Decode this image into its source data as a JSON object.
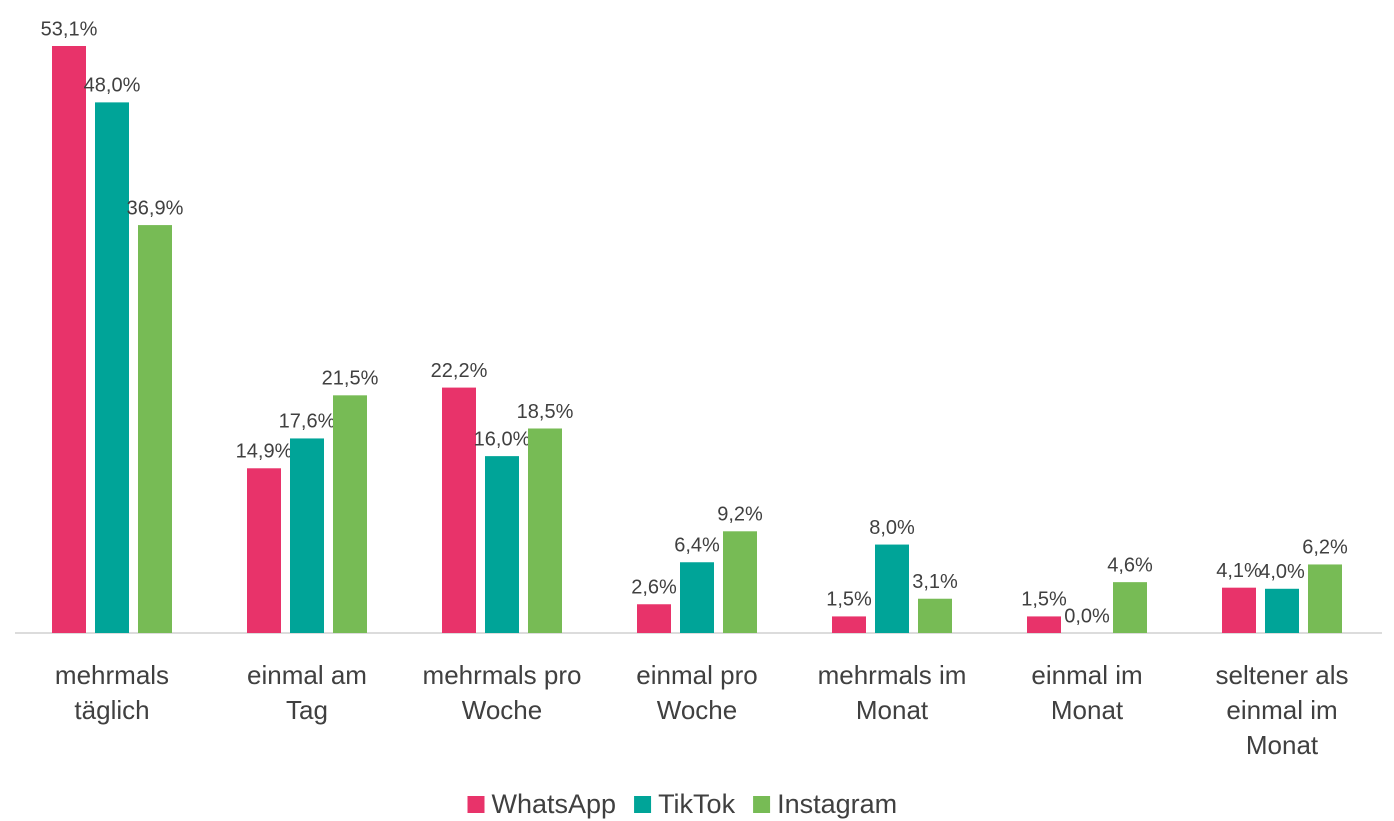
{
  "chart_data": {
    "type": "bar",
    "categories": [
      "mehrmals\ntäglich",
      "einmal am\nTag",
      "mehrmals pro\nWoche",
      "einmal pro\nWoche",
      "mehrmals im\nMonat",
      "einmal im\nMonat",
      "seltener als\neinmal im\nMonat"
    ],
    "series": [
      {
        "name": "WhatsApp",
        "color": "#e8336a",
        "values": [
          53.1,
          14.9,
          22.2,
          2.6,
          1.5,
          1.5,
          4.1
        ],
        "value_labels": [
          "53,1%",
          "14,9%",
          "22,2%",
          "2,6%",
          "1,5%",
          "1,5%",
          "4,1%"
        ]
      },
      {
        "name": "TikTok",
        "color": "#00a498",
        "values": [
          48.0,
          17.6,
          16.0,
          6.4,
          8.0,
          0.0,
          4.0
        ],
        "value_labels": [
          "48,0%",
          "17,6%",
          "16,0%",
          "6,4%",
          "8,0%",
          "0,0%",
          "4,0%"
        ]
      },
      {
        "name": "Instagram",
        "color": "#77bb55",
        "values": [
          36.9,
          21.5,
          18.5,
          9.2,
          3.1,
          4.6,
          6.2
        ],
        "value_labels": [
          "36,9%",
          "21,5%",
          "18,5%",
          "9,2%",
          "3,1%",
          "4,6%",
          "6,2%"
        ]
      }
    ]
  }
}
